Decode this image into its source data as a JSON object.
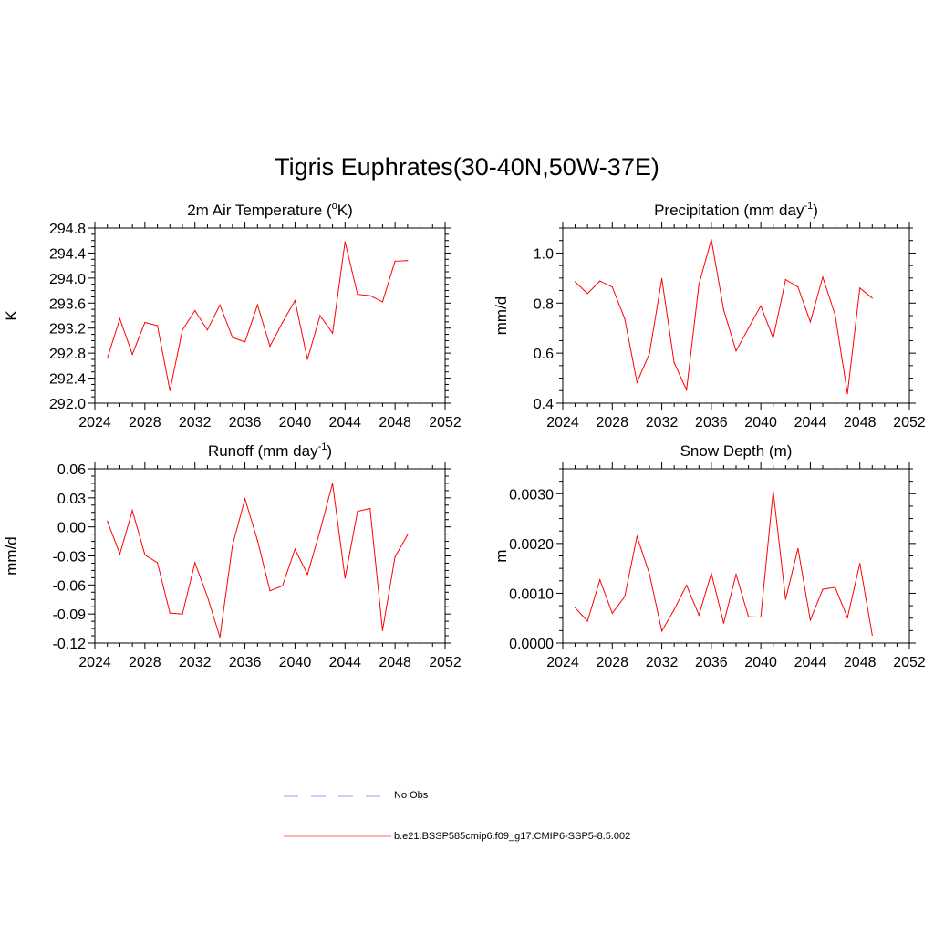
{
  "title": "Tigris Euphrates(30-40N,50W-37E)",
  "legend": {
    "entries": [
      {
        "label": "No Obs",
        "color": "#9999ff",
        "style": "dashed"
      },
      {
        "label": "b.e21.BSSP585cmip6.f09_g17.CMIP6-SSP5-8.5.002",
        "color": "#ff6666",
        "style": "solid"
      }
    ]
  },
  "chart_data": [
    {
      "type": "line",
      "title": "2m Air Temperature (",
      "title_sup": "o",
      "title_after": "K)",
      "ylabel": "K",
      "xlim": [
        2024,
        2052
      ],
      "ylim": [
        292.0,
        294.8
      ],
      "xticks": [
        2024,
        2028,
        2032,
        2036,
        2040,
        2044,
        2048,
        2052
      ],
      "yticks": [
        "292.0",
        "292.4",
        "292.8",
        "293.2",
        "293.6",
        "294.0",
        "294.4",
        "294.8"
      ],
      "ytick_values": [
        292.0,
        292.4,
        292.8,
        293.2,
        293.6,
        294.0,
        294.4,
        294.8
      ],
      "series": [
        {
          "color": "#ff0000",
          "x": [
            2025,
            2026,
            2027,
            2028,
            2029,
            2030,
            2031,
            2032,
            2033,
            2034,
            2035,
            2036,
            2037,
            2038,
            2039,
            2040,
            2041,
            2042,
            2043,
            2044,
            2045,
            2046,
            2047,
            2048,
            2049
          ],
          "values": [
            292.72,
            293.35,
            292.78,
            293.29,
            293.24,
            292.2,
            293.17,
            293.48,
            293.17,
            293.57,
            293.05,
            292.98,
            293.57,
            292.91,
            293.29,
            293.64,
            292.7,
            293.4,
            293.12,
            294.58,
            293.74,
            293.72,
            293.62,
            294.27,
            294.28
          ]
        }
      ]
    },
    {
      "type": "line",
      "title": "Precipitation (mm day",
      "title_sup": "-1",
      "title_after": ")",
      "ylabel": "mm/d",
      "xlim": [
        2024,
        2052
      ],
      "ylim": [
        0.4,
        1.1
      ],
      "xticks": [
        2024,
        2028,
        2032,
        2036,
        2040,
        2044,
        2048,
        2052
      ],
      "yticks": [
        "0.4",
        "0.6",
        "0.8",
        "1.0"
      ],
      "ytick_values": [
        0.4,
        0.6,
        0.8,
        1.0
      ],
      "series": [
        {
          "color": "#ff0000",
          "x": [
            2025,
            2026,
            2027,
            2028,
            2029,
            2030,
            2031,
            2032,
            2033,
            2034,
            2035,
            2036,
            2037,
            2038,
            2039,
            2040,
            2041,
            2042,
            2043,
            2044,
            2045,
            2046,
            2047,
            2048,
            2049
          ],
          "values": [
            0.885,
            0.838,
            0.888,
            0.864,
            0.738,
            0.483,
            0.598,
            0.898,
            0.562,
            0.453,
            0.875,
            1.054,
            0.773,
            0.609,
            0.7,
            0.789,
            0.66,
            0.894,
            0.864,
            0.725,
            0.904,
            0.753,
            0.438,
            0.86,
            0.82
          ]
        }
      ]
    },
    {
      "type": "line",
      "title": "Runoff (mm day",
      "title_sup": "-1",
      "title_after": ")",
      "ylabel": "mm/d",
      "xlim": [
        2024,
        2052
      ],
      "ylim": [
        -0.12,
        0.06
      ],
      "xticks": [
        2024,
        2028,
        2032,
        2036,
        2040,
        2044,
        2048,
        2052
      ],
      "yticks": [
        "-0.12",
        "-0.09",
        "-0.06",
        "-0.03",
        "0.00",
        "0.03",
        "0.06"
      ],
      "ytick_values": [
        -0.12,
        -0.09,
        -0.06,
        -0.03,
        0.0,
        0.03,
        0.06
      ],
      "series": [
        {
          "color": "#ff0000",
          "x": [
            2025,
            2026,
            2027,
            2028,
            2029,
            2030,
            2031,
            2032,
            2033,
            2034,
            2035,
            2036,
            2037,
            2038,
            2039,
            2040,
            2041,
            2042,
            2043,
            2044,
            2045,
            2046,
            2047,
            2048,
            2049
          ],
          "values": [
            0.006,
            -0.028,
            0.017,
            -0.029,
            -0.037,
            -0.089,
            -0.09,
            -0.037,
            -0.072,
            -0.114,
            -0.019,
            0.029,
            -0.014,
            -0.066,
            -0.061,
            -0.023,
            -0.049,
            -0.004,
            0.045,
            -0.053,
            0.016,
            0.019,
            -0.107,
            -0.031,
            -0.008
          ]
        }
      ]
    },
    {
      "type": "line",
      "title": "Snow Depth (m)",
      "title_sup": "",
      "title_after": "",
      "ylabel": "m",
      "xlim": [
        2024,
        2052
      ],
      "ylim": [
        0.0,
        0.0035
      ],
      "xticks": [
        2024,
        2028,
        2032,
        2036,
        2040,
        2044,
        2048,
        2052
      ],
      "yticks": [
        "0.0000",
        "0.0010",
        "0.0020",
        "0.0030"
      ],
      "ytick_values": [
        0.0,
        0.001,
        0.002,
        0.003
      ],
      "series": [
        {
          "color": "#ff0000",
          "x": [
            2025,
            2026,
            2027,
            2028,
            2029,
            2030,
            2031,
            2032,
            2033,
            2034,
            2035,
            2036,
            2037,
            2038,
            2039,
            2040,
            2041,
            2042,
            2043,
            2044,
            2045,
            2046,
            2047,
            2048,
            2049
          ],
          "values": [
            0.00071,
            0.00044,
            0.00127,
            0.0006,
            0.00093,
            0.00214,
            0.00139,
            0.00024,
            0.00067,
            0.00116,
            0.00056,
            0.0014,
            0.0004,
            0.00138,
            0.00053,
            0.00052,
            0.00305,
            0.00088,
            0.0019,
            0.00046,
            0.00108,
            0.00112,
            0.00051,
            0.0016,
            0.00016
          ]
        }
      ]
    }
  ]
}
